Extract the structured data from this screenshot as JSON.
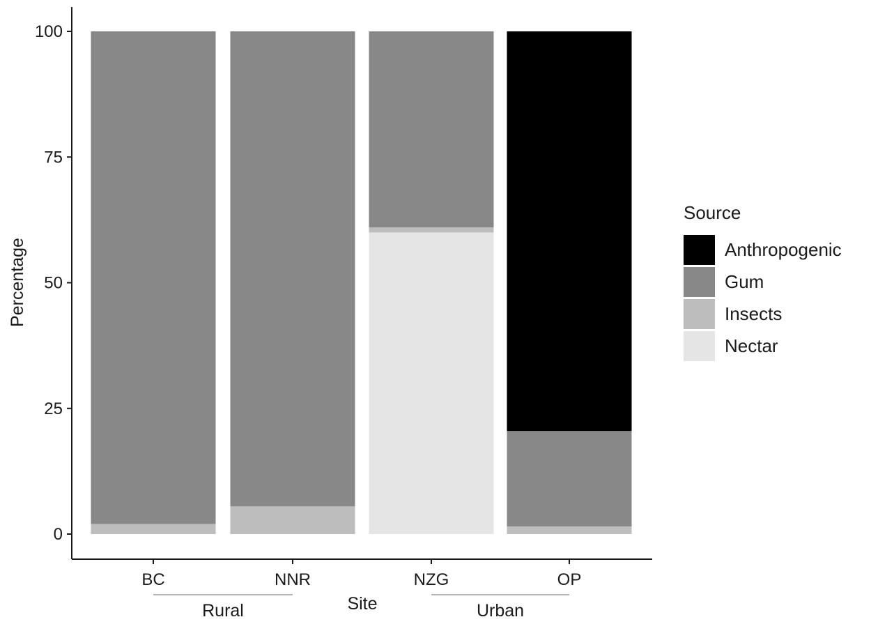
{
  "chart_data": {
    "type": "bar",
    "stacked": true,
    "title": "",
    "xlabel": "Site",
    "ylabel": "Percentage",
    "ylim": [
      0,
      100
    ],
    "yticks": [
      0,
      25,
      50,
      75,
      100
    ],
    "grid": false,
    "legend_position": "right",
    "legend_title": "Source",
    "categories": [
      "BC",
      "NNR",
      "NZG",
      "OP"
    ],
    "groups": [
      {
        "label": "Rural",
        "categories": [
          "BC",
          "NNR"
        ]
      },
      {
        "label": "Urban",
        "categories": [
          "NZG",
          "OP"
        ]
      }
    ],
    "series": [
      {
        "name": "Nectar",
        "color": "#e5e5e5",
        "values": [
          0,
          0,
          60,
          0
        ]
      },
      {
        "name": "Insects",
        "color": "#bdbdbd",
        "values": [
          2,
          5.5,
          1,
          1.5
        ]
      },
      {
        "name": "Gum",
        "color": "#888888",
        "values": [
          98,
          94.5,
          39,
          19
        ]
      },
      {
        "name": "Anthropogenic",
        "color": "#000000",
        "values": [
          0,
          0,
          0,
          79.5
        ]
      }
    ],
    "legend_order": [
      "Anthropogenic",
      "Gum",
      "Insects",
      "Nectar"
    ]
  }
}
